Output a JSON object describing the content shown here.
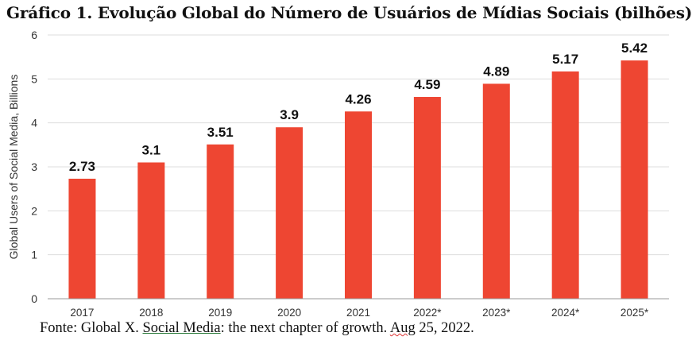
{
  "title": "Gráfico 1. Evolução Global do Número de Usuários de Mídias Sociais (bilhões)",
  "source": {
    "prefix": "Fonte: Global X. ",
    "link": "Social Media",
    "middle": ": the next chapter of growth. ",
    "month": "Aug",
    "suffix": " 25, 2022."
  },
  "colors": {
    "bar": "#EE4632",
    "grid": "#DDDDDD",
    "axis": "#333333",
    "text": "#111111"
  },
  "chart_data": {
    "type": "bar",
    "categories": [
      "2017",
      "2018",
      "2019",
      "2020",
      "2021",
      "2022*",
      "2023*",
      "2024*",
      "2025*"
    ],
    "values": [
      2.73,
      3.1,
      3.51,
      3.9,
      4.26,
      4.59,
      4.89,
      5.17,
      5.42
    ],
    "data_labels": [
      "2.73",
      "3.1",
      "3.51",
      "3.9",
      "4.26",
      "4.59",
      "4.89",
      "5.17",
      "5.42"
    ],
    "title": "",
    "xlabel": "",
    "ylabel": "Global Users of Social Media, Billions",
    "ylim": [
      0,
      6
    ],
    "yticks": [
      0,
      1,
      2,
      3,
      4,
      5,
      6
    ],
    "grid": true,
    "legend": "none"
  }
}
